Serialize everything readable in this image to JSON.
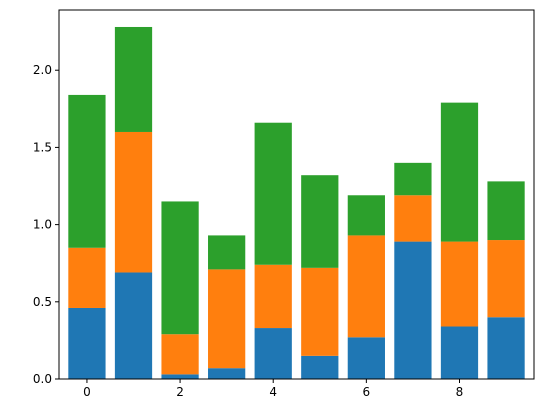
{
  "chart_data": {
    "type": "bar",
    "stacked": true,
    "title": "",
    "xlabel": "",
    "ylabel": "",
    "x": [
      0,
      1,
      2,
      3,
      4,
      5,
      6,
      7,
      8,
      9
    ],
    "xlim": [
      -0.6,
      9.6
    ],
    "ylim": [
      0,
      2.39
    ],
    "xticks": [
      0,
      2,
      4,
      6,
      8
    ],
    "yticks": [
      0.0,
      0.5,
      1.0,
      1.5,
      2.0
    ],
    "xtick_labels": [
      "0",
      "2",
      "4",
      "6",
      "8"
    ],
    "ytick_labels": [
      "0.0",
      "0.5",
      "1.0",
      "1.5",
      "2.0"
    ],
    "grid": false,
    "legend": "none",
    "series": [
      {
        "color": "#1f77b4",
        "values": [
          0.46,
          0.69,
          0.03,
          0.07,
          0.33,
          0.15,
          0.27,
          0.89,
          0.34,
          0.4
        ]
      },
      {
        "color": "#ff7f0e",
        "values": [
          0.39,
          0.91,
          0.26,
          0.64,
          0.41,
          0.57,
          0.66,
          0.3,
          0.55,
          0.5
        ]
      },
      {
        "color": "#2ca02c",
        "values": [
          0.99,
          0.68,
          0.86,
          0.22,
          0.92,
          0.6,
          0.26,
          0.21,
          0.9,
          0.38
        ]
      }
    ]
  }
}
